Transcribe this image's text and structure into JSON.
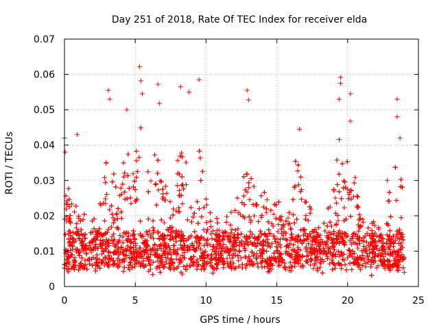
{
  "chart_data": {
    "type": "scatter",
    "title": "Day 251 of 2018, Rate Of TEC Index for receiver elda",
    "xlabel": "GPS time / hours",
    "ylabel": "ROTI / TECUs",
    "xlim": [
      0,
      25
    ],
    "ylim": [
      0,
      0.07
    ],
    "x_ticks": [
      "0",
      "5",
      "10",
      "15",
      "20",
      "25"
    ],
    "y_ticks": [
      "0",
      "0.01",
      "0.02",
      "0.03",
      "0.04",
      "0.05",
      "0.06",
      "0.07"
    ],
    "grid": true,
    "marker": "+",
    "marker_color": "#ff0000",
    "x_range_of_data": [
      0,
      24
    ],
    "baseline_band": [
      0.005,
      0.015
    ],
    "notable_points": [
      {
        "x": 0.0,
        "y": 0.042
      },
      {
        "x": 0.05,
        "y": 0.038
      },
      {
        "x": 0.9,
        "y": 0.043
      },
      {
        "x": 3.1,
        "y": 0.0555
      },
      {
        "x": 3.2,
        "y": 0.053
      },
      {
        "x": 4.4,
        "y": 0.05
      },
      {
        "x": 5.3,
        "y": 0.0622
      },
      {
        "x": 5.4,
        "y": 0.0582
      },
      {
        "x": 5.5,
        "y": 0.0545
      },
      {
        "x": 6.6,
        "y": 0.0572
      },
      {
        "x": 6.7,
        "y": 0.0518
      },
      {
        "x": 8.2,
        "y": 0.0565
      },
      {
        "x": 8.8,
        "y": 0.055
      },
      {
        "x": 9.5,
        "y": 0.0585
      },
      {
        "x": 12.9,
        "y": 0.0555
      },
      {
        "x": 13.0,
        "y": 0.0528
      },
      {
        "x": 16.6,
        "y": 0.0445
      },
      {
        "x": 19.5,
        "y": 0.0592
      },
      {
        "x": 19.5,
        "y": 0.0575
      },
      {
        "x": 19.4,
        "y": 0.053
      },
      {
        "x": 20.2,
        "y": 0.0545
      },
      {
        "x": 20.2,
        "y": 0.0468
      },
      {
        "x": 23.5,
        "y": 0.053
      },
      {
        "x": 23.5,
        "y": 0.048
      },
      {
        "x": 23.7,
        "y": 0.042
      },
      {
        "x": 22.8,
        "y": 0.03
      },
      {
        "x": 24.0,
        "y": 0.004
      }
    ],
    "activity_peaks": [
      {
        "x": 0.2,
        "level": 0.026,
        "width": 0.7
      },
      {
        "x": 3.2,
        "level": 0.032,
        "width": 0.6
      },
      {
        "x": 4.4,
        "level": 0.034,
        "width": 0.5
      },
      {
        "x": 5.4,
        "level": 0.04,
        "width": 0.7
      },
      {
        "x": 6.6,
        "level": 0.036,
        "width": 0.6
      },
      {
        "x": 8.3,
        "level": 0.033,
        "width": 0.7
      },
      {
        "x": 9.6,
        "level": 0.034,
        "width": 0.6
      },
      {
        "x": 12.9,
        "level": 0.03,
        "width": 0.8
      },
      {
        "x": 14.5,
        "level": 0.028,
        "width": 0.8
      },
      {
        "x": 16.5,
        "level": 0.031,
        "width": 0.7
      },
      {
        "x": 19.6,
        "level": 0.036,
        "width": 0.8
      },
      {
        "x": 20.4,
        "level": 0.03,
        "width": 0.6
      },
      {
        "x": 23.5,
        "level": 0.034,
        "width": 0.6
      }
    ]
  }
}
